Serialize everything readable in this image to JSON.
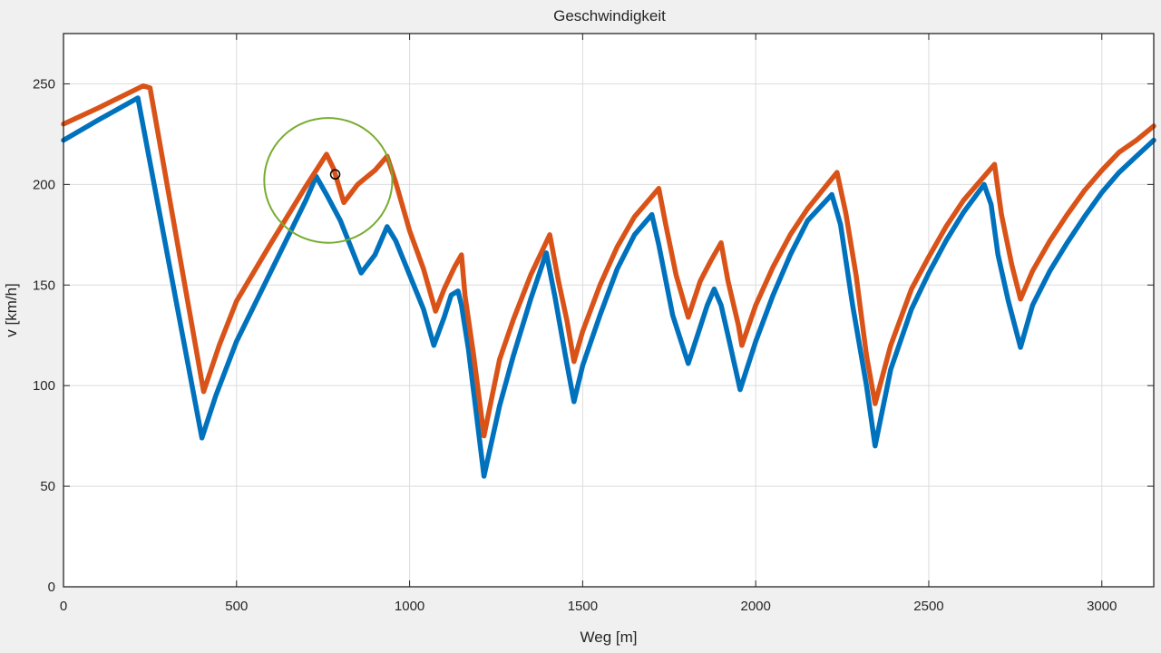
{
  "chart_data": {
    "type": "line",
    "title": "Geschwindigkeit",
    "xlabel": "Weg [m]",
    "ylabel": "v [km/h]",
    "xlim": [
      0,
      3150
    ],
    "ylim": [
      0,
      275
    ],
    "xticks": [
      0,
      500,
      1000,
      1500,
      2000,
      2500,
      3000
    ],
    "yticks": [
      0,
      50,
      100,
      150,
      200,
      250
    ],
    "grid": true,
    "colors": {
      "series_blue": "#0072bd",
      "series_orange": "#d95319",
      "annotation": "#77ac30",
      "marker": "#000000"
    },
    "series": [
      {
        "color": "#0072bd",
        "points": [
          [
            0,
            222
          ],
          [
            100,
            232
          ],
          [
            215,
            243
          ],
          [
            400,
            74
          ],
          [
            440,
            95
          ],
          [
            500,
            122
          ],
          [
            600,
            157
          ],
          [
            700,
            192
          ],
          [
            730,
            204
          ],
          [
            760,
            195
          ],
          [
            800,
            182
          ],
          [
            860,
            156
          ],
          [
            900,
            165
          ],
          [
            935,
            179
          ],
          [
            960,
            172
          ],
          [
            1000,
            155
          ],
          [
            1040,
            138
          ],
          [
            1070,
            120
          ],
          [
            1100,
            134
          ],
          [
            1120,
            145
          ],
          [
            1140,
            147
          ],
          [
            1150,
            140
          ],
          [
            1170,
            118
          ],
          [
            1215,
            55
          ],
          [
            1260,
            90
          ],
          [
            1300,
            115
          ],
          [
            1350,
            143
          ],
          [
            1395,
            166
          ],
          [
            1420,
            144
          ],
          [
            1450,
            115
          ],
          [
            1475,
            92
          ],
          [
            1500,
            110
          ],
          [
            1550,
            135
          ],
          [
            1600,
            158
          ],
          [
            1650,
            175
          ],
          [
            1700,
            185
          ],
          [
            1720,
            170
          ],
          [
            1760,
            135
          ],
          [
            1805,
            111
          ],
          [
            1830,
            124
          ],
          [
            1860,
            140
          ],
          [
            1880,
            148
          ],
          [
            1900,
            140
          ],
          [
            1920,
            125
          ],
          [
            1955,
            98
          ],
          [
            2000,
            122
          ],
          [
            2050,
            145
          ],
          [
            2100,
            165
          ],
          [
            2150,
            182
          ],
          [
            2220,
            195
          ],
          [
            2245,
            180
          ],
          [
            2280,
            140
          ],
          [
            2320,
            100
          ],
          [
            2345,
            70
          ],
          [
            2390,
            108
          ],
          [
            2450,
            138
          ],
          [
            2500,
            156
          ],
          [
            2550,
            172
          ],
          [
            2600,
            186
          ],
          [
            2660,
            200
          ],
          [
            2680,
            190
          ],
          [
            2700,
            165
          ],
          [
            2730,
            142
          ],
          [
            2765,
            119
          ],
          [
            2800,
            140
          ],
          [
            2850,
            157
          ],
          [
            2900,
            171
          ],
          [
            2950,
            184
          ],
          [
            3000,
            196
          ],
          [
            3050,
            206
          ],
          [
            3100,
            214
          ],
          [
            3150,
            222
          ]
        ]
      },
      {
        "color": "#d95319",
        "points": [
          [
            0,
            230
          ],
          [
            100,
            238
          ],
          [
            230,
            249
          ],
          [
            250,
            248
          ],
          [
            405,
            97
          ],
          [
            450,
            120
          ],
          [
            500,
            142
          ],
          [
            600,
            171
          ],
          [
            700,
            199
          ],
          [
            760,
            215
          ],
          [
            780,
            208
          ],
          [
            810,
            191
          ],
          [
            850,
            200
          ],
          [
            900,
            207
          ],
          [
            935,
            214
          ],
          [
            960,
            201
          ],
          [
            1000,
            177
          ],
          [
            1040,
            158
          ],
          [
            1075,
            137
          ],
          [
            1100,
            148
          ],
          [
            1130,
            159
          ],
          [
            1150,
            165
          ],
          [
            1160,
            145
          ],
          [
            1185,
            115
          ],
          [
            1215,
            75
          ],
          [
            1260,
            113
          ],
          [
            1300,
            133
          ],
          [
            1350,
            155
          ],
          [
            1405,
            175
          ],
          [
            1430,
            152
          ],
          [
            1455,
            132
          ],
          [
            1475,
            112
          ],
          [
            1500,
            127
          ],
          [
            1550,
            150
          ],
          [
            1600,
            169
          ],
          [
            1650,
            184
          ],
          [
            1720,
            198
          ],
          [
            1740,
            180
          ],
          [
            1770,
            155
          ],
          [
            1805,
            134
          ],
          [
            1840,
            152
          ],
          [
            1870,
            162
          ],
          [
            1900,
            171
          ],
          [
            1920,
            152
          ],
          [
            1950,
            130
          ],
          [
            1960,
            120
          ],
          [
            2000,
            140
          ],
          [
            2050,
            159
          ],
          [
            2100,
            175
          ],
          [
            2150,
            188
          ],
          [
            2235,
            206
          ],
          [
            2260,
            186
          ],
          [
            2290,
            155
          ],
          [
            2320,
            115
          ],
          [
            2345,
            91
          ],
          [
            2390,
            120
          ],
          [
            2450,
            148
          ],
          [
            2500,
            164
          ],
          [
            2550,
            179
          ],
          [
            2600,
            192
          ],
          [
            2690,
            210
          ],
          [
            2710,
            185
          ],
          [
            2740,
            160
          ],
          [
            2765,
            143
          ],
          [
            2800,
            157
          ],
          [
            2850,
            172
          ],
          [
            2900,
            185
          ],
          [
            2950,
            197
          ],
          [
            3000,
            207
          ],
          [
            3050,
            216
          ],
          [
            3100,
            222
          ],
          [
            3150,
            229
          ]
        ]
      }
    ],
    "annotations": [
      {
        "kind": "ellipse",
        "cx": 765,
        "cy": 202,
        "rx": 185,
        "ry": 31,
        "color": "#77ac30"
      },
      {
        "kind": "circle_marker",
        "x": 785,
        "y": 205,
        "color": "#000000"
      }
    ]
  }
}
